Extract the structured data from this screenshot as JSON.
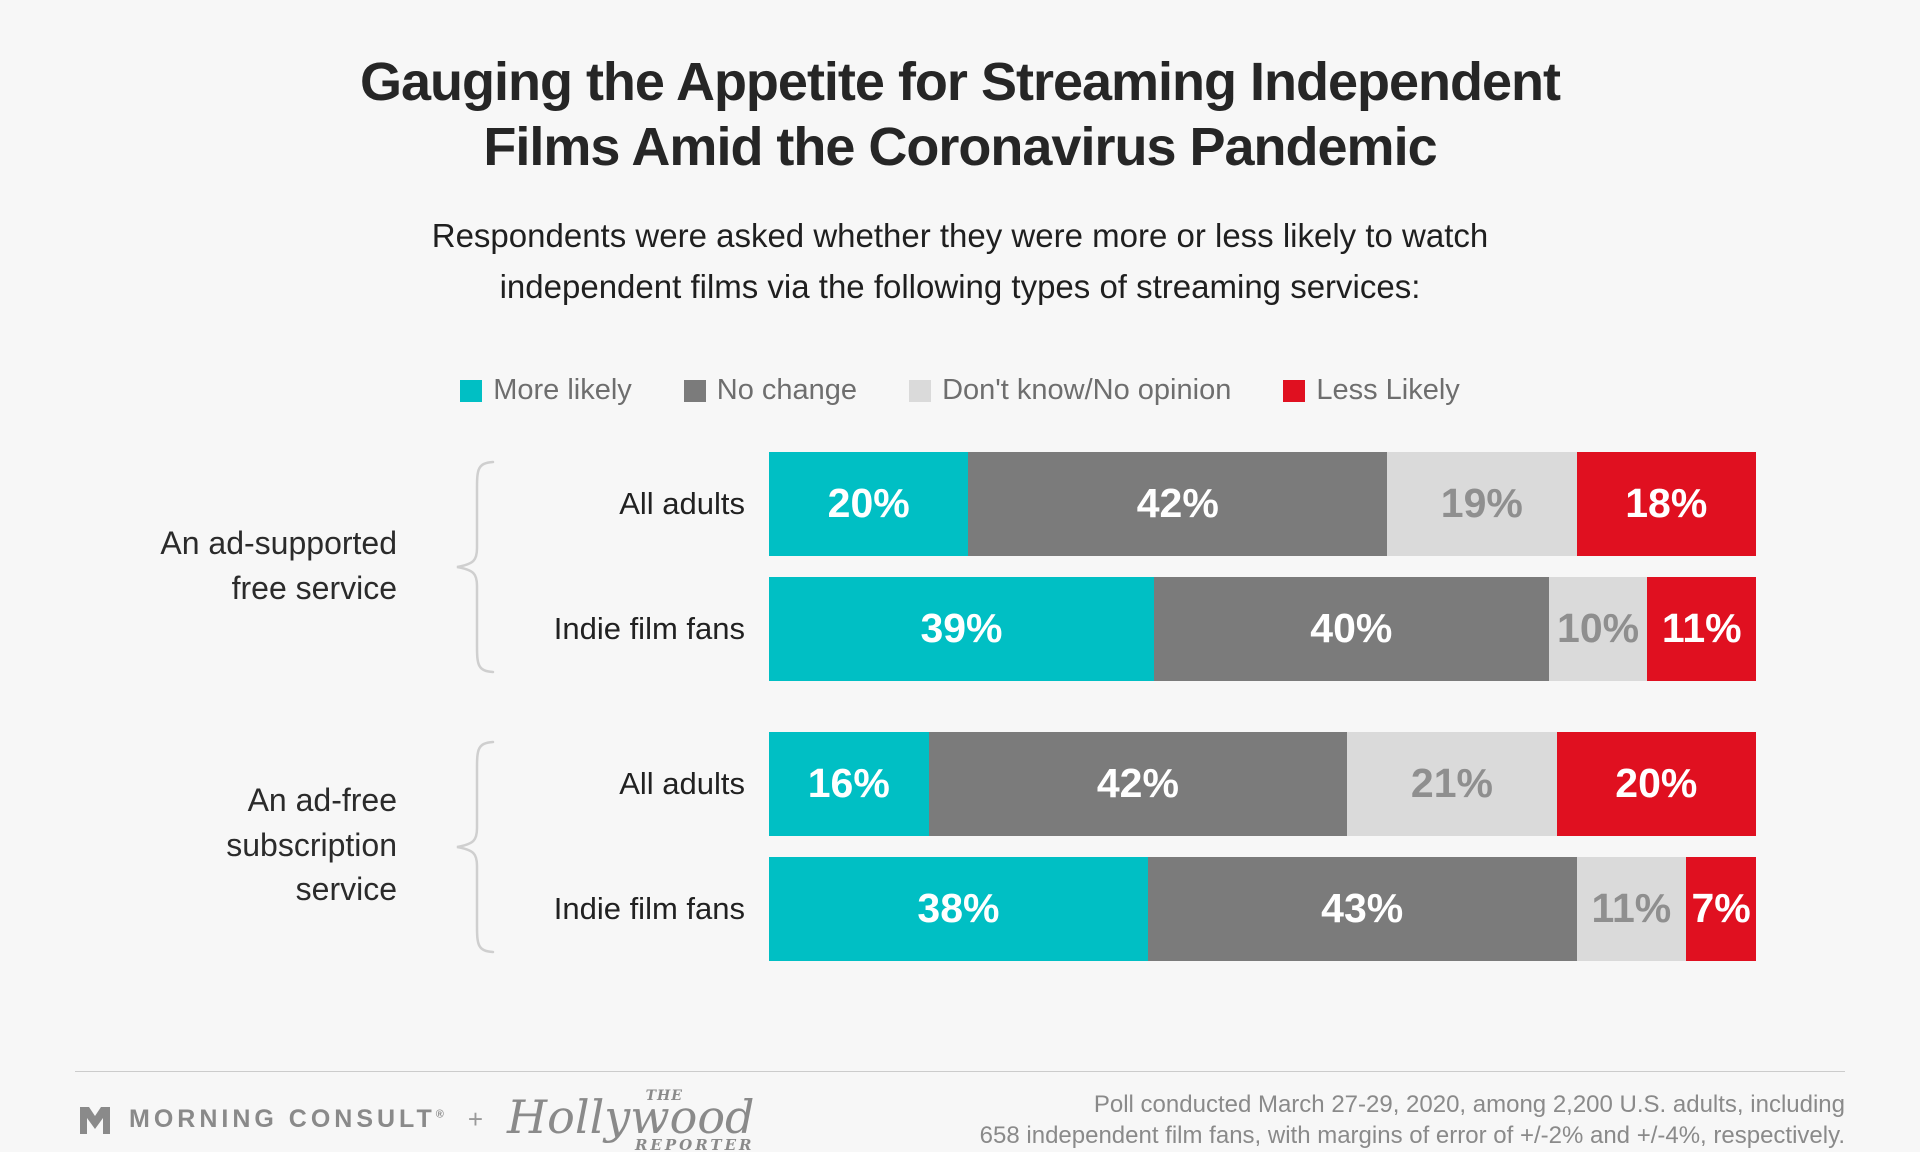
{
  "header": {
    "title_line1": "Gauging the Appetite for Streaming Independent",
    "title_line2": "Films Amid the Coronavirus Pandemic",
    "subtitle_line1": "Respondents were asked whether they were more or less likely to watch",
    "subtitle_line2": "independent films via the following types of streaming services:"
  },
  "chart_data": {
    "type": "bar",
    "orientation": "horizontal_stacked",
    "unit": "%",
    "xlim": [
      0,
      100
    ],
    "legend_position": "top-center",
    "legend": [
      {
        "label": "More likely",
        "color": "#00BFC4",
        "value_text_color": "#FFFFFF"
      },
      {
        "label": "No change",
        "color": "#7B7B7B",
        "value_text_color": "#FFFFFF"
      },
      {
        "label": "Don't know/No opinion",
        "color": "#DADADA",
        "value_text_color": "#8F8F8F"
      },
      {
        "label": "Less Likely",
        "color": "#E01020",
        "value_text_color": "#FFFFFF"
      }
    ],
    "groups": [
      {
        "label_lines": [
          "An ad-supported",
          "free service"
        ],
        "rows": [
          {
            "category": "All adults",
            "values": [
              20,
              42,
              19,
              18
            ]
          },
          {
            "category": "Indie film fans",
            "values": [
              39,
              40,
              10,
              11
            ]
          }
        ]
      },
      {
        "label_lines": [
          "An ad-free",
          "subscription",
          "service"
        ],
        "rows": [
          {
            "category": "All adults",
            "values": [
              16,
              42,
              21,
              20
            ]
          },
          {
            "category": "Indie film fans",
            "values": [
              38,
              43,
              11,
              7
            ]
          }
        ]
      }
    ]
  },
  "footer": {
    "brand_left": "MORNING CONSULT",
    "brand_reg": "®",
    "brand_plus": "+",
    "brand_right_the": "THE",
    "brand_right_name": "Hollywood",
    "brand_right_sub": "REPORTER",
    "note_line1": "Poll conducted March 27-29, 2020, among 2,200 U.S. adults, including",
    "note_line2": "658 independent film fans, with margins of error of +/-2% and +/-4%, respectively."
  },
  "colors": {
    "background": "#F7F7F7",
    "title_text": "#262626",
    "legend_text": "#6E6E6E",
    "brace": "#CFCFCF",
    "divider": "#CCCCCC",
    "footer_text": "#8A8A8A"
  }
}
